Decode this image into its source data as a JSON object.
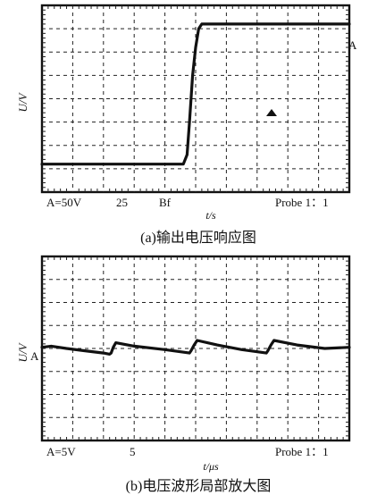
{
  "chart_data": [
    {
      "type": "line",
      "caption": "(a)输出电压响应图",
      "xlabel": "t/s",
      "ylabel": "U/V",
      "info": {
        "volts_per_div": "A=50V",
        "timebase": "25",
        "trigger": "Bf",
        "probe": "Probe 1：1"
      },
      "channel_label": "A",
      "grid": true,
      "grid_divisions": {
        "x": 10,
        "y": 8
      },
      "ylim": [
        -4,
        4
      ],
      "xlim": [
        0,
        10
      ],
      "series": [
        {
          "values": [
            [
              0.0,
              -2.8
            ],
            [
              1.0,
              -2.8
            ],
            [
              2.0,
              -2.8
            ],
            [
              3.0,
              -2.8
            ],
            [
              4.0,
              -2.8
            ],
            [
              4.6,
              -2.8
            ],
            [
              4.72,
              -2.4
            ],
            [
              4.8,
              -1.0
            ],
            [
              4.9,
              1.0
            ],
            [
              5.0,
              2.2
            ],
            [
              5.1,
              3.0
            ],
            [
              5.2,
              3.2
            ],
            [
              6.0,
              3.2
            ],
            [
              7.0,
              3.2
            ],
            [
              8.0,
              3.2
            ],
            [
              9.0,
              3.2
            ],
            [
              10.0,
              3.2
            ]
          ]
        }
      ]
    },
    {
      "type": "line",
      "caption": "(b)电压波形局部放大图",
      "xlabel": "t/μs",
      "ylabel": "U/V",
      "info": {
        "volts_per_div": "A=5V",
        "timebase": "5",
        "probe": "Probe 1：1"
      },
      "channel_label": "A",
      "grid": true,
      "grid_divisions": {
        "x": 10,
        "y": 8
      },
      "ylim": [
        -4,
        4
      ],
      "xlim": [
        0,
        10
      ],
      "series": [
        {
          "values": [
            [
              0.0,
              0.05
            ],
            [
              0.3,
              0.1
            ],
            [
              0.8,
              0.0
            ],
            [
              1.4,
              -0.1
            ],
            [
              2.0,
              -0.2
            ],
            [
              2.2,
              -0.25
            ],
            [
              2.25,
              -0.2
            ],
            [
              2.32,
              0.05
            ],
            [
              2.4,
              0.25
            ],
            [
              3.0,
              0.1
            ],
            [
              4.0,
              -0.05
            ],
            [
              4.8,
              -0.2
            ],
            [
              4.85,
              -0.1
            ],
            [
              4.95,
              0.15
            ],
            [
              5.05,
              0.35
            ],
            [
              5.7,
              0.15
            ],
            [
              6.5,
              -0.05
            ],
            [
              7.3,
              -0.2
            ],
            [
              7.35,
              -0.1
            ],
            [
              7.45,
              0.15
            ],
            [
              7.55,
              0.35
            ],
            [
              8.3,
              0.15
            ],
            [
              9.2,
              0.0
            ],
            [
              10.0,
              0.05
            ]
          ]
        }
      ]
    }
  ]
}
